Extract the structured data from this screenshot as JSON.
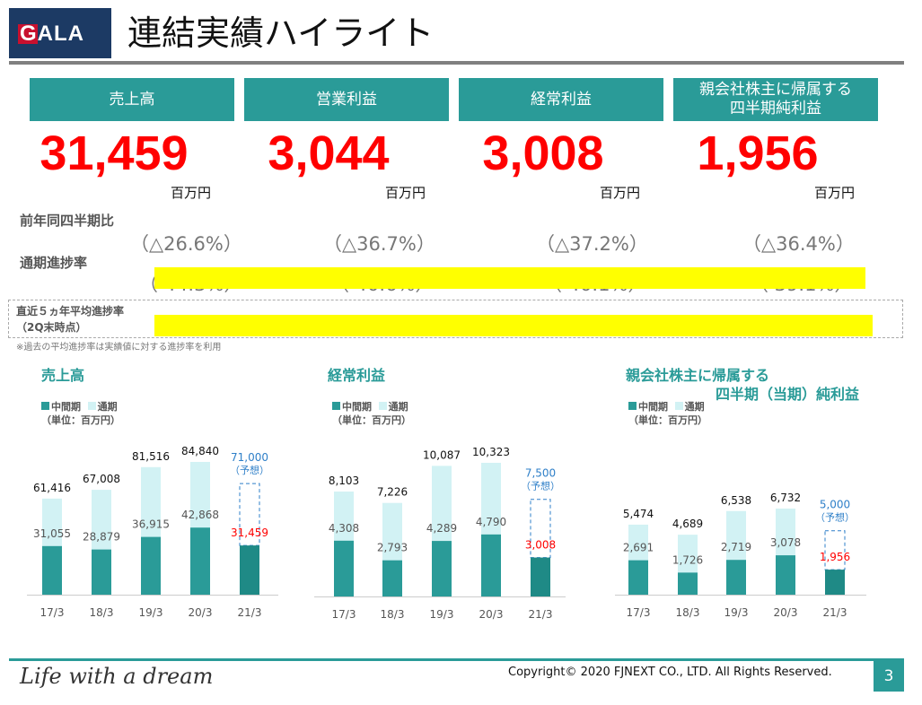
{
  "header": {
    "logo": "GALA",
    "title": "連結実績ハイライト"
  },
  "kpis": [
    {
      "label": "売上高",
      "value": "31,459",
      "unit": "百万円",
      "yoy": "（△26.6%）",
      "progress": "（ 44.3%）",
      "avg": "（ 45.5%）"
    },
    {
      "label": "営業利益",
      "value": "3,044",
      "unit": "百万円",
      "yoy": "（△36.7%）",
      "progress": "（ 40.6%）",
      "avg": "（ 41.7%）"
    },
    {
      "label": "経常利益",
      "value": "3,008",
      "unit": "百万円",
      "yoy": "（△37.2%）",
      "progress": "（ 40.1%）",
      "avg": "（ 41.7%）"
    },
    {
      "label": "親会社株主に帰属する\n四半期純利益",
      "value": "1,956",
      "unit": "百万円",
      "yoy": "（△36.4%）",
      "progress": "（ 39.1%）",
      "avg": "（ 40.3%）"
    }
  ],
  "rows": {
    "yoy_label": "前年同四半期比",
    "progress_label": "通期進捗率",
    "avg_label1": "直近５ヵ年平均進捗率",
    "avg_label2": "（2Q末時点）",
    "note": "※過去の平均進捗率は実績値に対する進捗率を利用"
  },
  "colors": {
    "interim": "#2a9b98",
    "full": "#d2f2f4",
    "current": "#1f8a86",
    "highlight": "#ffff00",
    "value": "#ff0000",
    "forecast": "#2e7fc8"
  },
  "chart_data": [
    {
      "type": "bar",
      "title": "売上高",
      "legend": [
        "中間期",
        "通期"
      ],
      "unit": "（単位：百万円）",
      "categories": [
        "17/3",
        "18/3",
        "19/3",
        "20/3",
        "21/3"
      ],
      "series": [
        {
          "name": "中間期",
          "values": [
            31055,
            28879,
            36915,
            42868,
            31459
          ]
        },
        {
          "name": "通期",
          "values": [
            61416,
            67008,
            81516,
            84840,
            71000
          ]
        }
      ],
      "labels_interim": [
        "31,055",
        "28,879",
        "36,915",
        "42,868",
        "31,459"
      ],
      "labels_full": [
        "61,416",
        "67,008",
        "81,516",
        "84,840",
        "71,000"
      ],
      "forecast_note": "（予想）",
      "ylim": [
        0,
        90000
      ]
    },
    {
      "type": "bar",
      "title": "経常利益",
      "legend": [
        "中間期",
        "通期"
      ],
      "unit": "（単位：百万円）",
      "categories": [
        "17/3",
        "18/3",
        "19/3",
        "20/3",
        "21/3"
      ],
      "series": [
        {
          "name": "中間期",
          "values": [
            4308,
            2793,
            4289,
            4790,
            3008
          ]
        },
        {
          "name": "通期",
          "values": [
            8103,
            7226,
            10087,
            10323,
            7500
          ]
        }
      ],
      "labels_interim": [
        "4,308",
        "2,793",
        "4,289",
        "4,790",
        "3,008"
      ],
      "labels_full": [
        "8,103",
        "7,226",
        "10,087",
        "10,323",
        "7,500"
      ],
      "forecast_note": "（予想）",
      "ylim": [
        0,
        11000
      ]
    },
    {
      "type": "bar",
      "title": "親会社株主に帰属する",
      "title2": "四半期（当期）純利益",
      "legend": [
        "中間期",
        "通期"
      ],
      "unit": "（単位：百万円）",
      "categories": [
        "17/3",
        "18/3",
        "19/3",
        "20/3",
        "21/3"
      ],
      "series": [
        {
          "name": "中間期",
          "values": [
            2691,
            1726,
            2719,
            3078,
            1956
          ]
        },
        {
          "name": "通期",
          "values": [
            5474,
            4689,
            6538,
            6732,
            5000
          ]
        }
      ],
      "labels_interim": [
        "2,691",
        "1,726",
        "2,719",
        "3,078",
        "1,956"
      ],
      "labels_full": [
        "5,474",
        "4,689",
        "6,538",
        "6,732",
        "5,000"
      ],
      "forecast_note": "（予想）",
      "ylim": [
        0,
        8000
      ]
    }
  ],
  "footer": {
    "slogan": "Life with a dream",
    "copyright": "Copyright© 2020 FJNEXT CO., LTD. All Rights Reserved.",
    "page": "3"
  }
}
